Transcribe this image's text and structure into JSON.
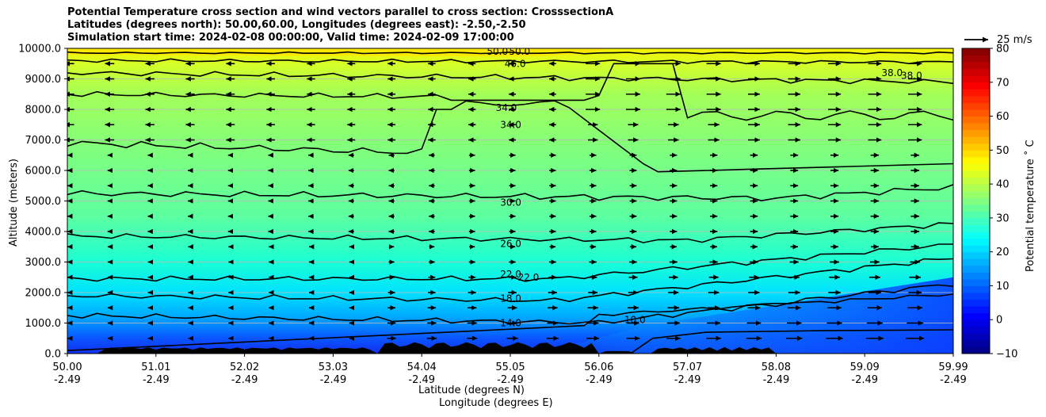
{
  "titles": {
    "line1": "Potential Temperature cross section and wind vectors parallel to cross section: CrosssectionA",
    "line2": "Latitudes (degrees north): 50.00,60.00, Longitudes (degrees east): -2.50,-2.50",
    "line3": "Simulation start time: 2024-02-08 00:00:00, Valid time: 2024-02-09 17:00:00"
  },
  "chart_data": {
    "type": "contour",
    "xlabel_lat": "Latitude (degrees N)",
    "xlabel_lon": "Longitude (degrees E)",
    "ylabel": "Altitude (meters)",
    "ylim": [
      0,
      10000
    ],
    "x_ticks": [
      {
        "lat": "50.00",
        "lon": "-2.49"
      },
      {
        "lat": "51.01",
        "lon": "-2.49"
      },
      {
        "lat": "52.02",
        "lon": "-2.49"
      },
      {
        "lat": "53.03",
        "lon": "-2.49"
      },
      {
        "lat": "54.04",
        "lon": "-2.49"
      },
      {
        "lat": "55.05",
        "lon": "-2.49"
      },
      {
        "lat": "56.06",
        "lon": "-2.49"
      },
      {
        "lat": "57.07",
        "lon": "-2.49"
      },
      {
        "lat": "58.08",
        "lon": "-2.49"
      },
      {
        "lat": "59.09",
        "lon": "-2.49"
      },
      {
        "lat": "59.99",
        "lon": "-2.49"
      }
    ],
    "y_ticks": [
      "0.0",
      "1000.0",
      "2000.0",
      "3000.0",
      "4000.0",
      "5000.0",
      "6000.0",
      "7000.0",
      "8000.0",
      "9000.0",
      "10000.0"
    ],
    "grid": true,
    "colorbar": {
      "label": "Potential temperature $^\\circ$C",
      "label_text": "Potential temperature ˚ C",
      "min": -10,
      "max": 80,
      "ticks": [
        "−10",
        "0",
        "10",
        "20",
        "30",
        "40",
        "50",
        "60",
        "70",
        "80"
      ],
      "colormap": "jet"
    },
    "contour_labels": [
      {
        "text": "50.0",
        "lat": 54.85,
        "alt": 9900
      },
      {
        "text": "50.0",
        "lat": 55.1,
        "alt": 9900
      },
      {
        "text": "46.0",
        "lat": 55.05,
        "alt": 9500
      },
      {
        "text": "34.0",
        "lat": 54.95,
        "alt": 8050
      },
      {
        "text": "34.0",
        "lat": 55.0,
        "alt": 7500
      },
      {
        "text": "38.0",
        "lat": 59.3,
        "alt": 9200
      },
      {
        "text": "38.0",
        "lat": 59.52,
        "alt": 9100
      },
      {
        "text": "30.0",
        "lat": 55.0,
        "alt": 4950
      },
      {
        "text": "26.0",
        "lat": 55.0,
        "alt": 3600
      },
      {
        "text": "22.0",
        "lat": 55.0,
        "alt": 2600
      },
      {
        "text": "22.0",
        "lat": 55.2,
        "alt": 2500
      },
      {
        "text": "18.0",
        "lat": 55.0,
        "alt": 1800
      },
      {
        "text": "14.0",
        "lat": 55.0,
        "alt": 1000
      },
      {
        "text": "10.0",
        "lat": 56.4,
        "alt": 1100
      }
    ],
    "wind_reference": {
      "label": "25 m/s",
      "speed": 25
    }
  }
}
